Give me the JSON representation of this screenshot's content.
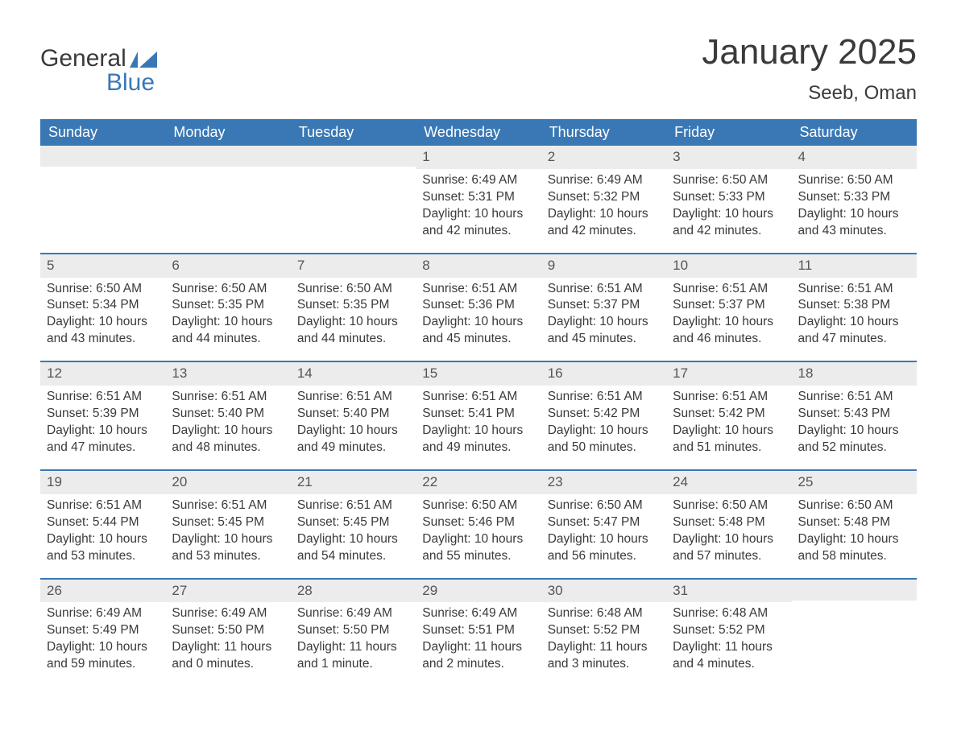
{
  "logo": {
    "word1": "General",
    "word2": "Blue",
    "accent_color": "#3a78b5"
  },
  "title": "January 2025",
  "location": "Seeb, Oman",
  "colors": {
    "header_bg": "#3a78b5",
    "header_text": "#ffffff",
    "daynum_bg": "#ececec",
    "text": "#3a3a3a",
    "row_divider": "#3a78b5",
    "page_bg": "#ffffff"
  },
  "day_headers": [
    "Sunday",
    "Monday",
    "Tuesday",
    "Wednesday",
    "Thursday",
    "Friday",
    "Saturday"
  ],
  "weeks": [
    [
      {
        "empty": true
      },
      {
        "empty": true
      },
      {
        "empty": true
      },
      {
        "day": "1",
        "sunrise": "Sunrise: 6:49 AM",
        "sunset": "Sunset: 5:31 PM",
        "daylight": "Daylight: 10 hours and 42 minutes."
      },
      {
        "day": "2",
        "sunrise": "Sunrise: 6:49 AM",
        "sunset": "Sunset: 5:32 PM",
        "daylight": "Daylight: 10 hours and 42 minutes."
      },
      {
        "day": "3",
        "sunrise": "Sunrise: 6:50 AM",
        "sunset": "Sunset: 5:33 PM",
        "daylight": "Daylight: 10 hours and 42 minutes."
      },
      {
        "day": "4",
        "sunrise": "Sunrise: 6:50 AM",
        "sunset": "Sunset: 5:33 PM",
        "daylight": "Daylight: 10 hours and 43 minutes."
      }
    ],
    [
      {
        "day": "5",
        "sunrise": "Sunrise: 6:50 AM",
        "sunset": "Sunset: 5:34 PM",
        "daylight": "Daylight: 10 hours and 43 minutes."
      },
      {
        "day": "6",
        "sunrise": "Sunrise: 6:50 AM",
        "sunset": "Sunset: 5:35 PM",
        "daylight": "Daylight: 10 hours and 44 minutes."
      },
      {
        "day": "7",
        "sunrise": "Sunrise: 6:50 AM",
        "sunset": "Sunset: 5:35 PM",
        "daylight": "Daylight: 10 hours and 44 minutes."
      },
      {
        "day": "8",
        "sunrise": "Sunrise: 6:51 AM",
        "sunset": "Sunset: 5:36 PM",
        "daylight": "Daylight: 10 hours and 45 minutes."
      },
      {
        "day": "9",
        "sunrise": "Sunrise: 6:51 AM",
        "sunset": "Sunset: 5:37 PM",
        "daylight": "Daylight: 10 hours and 45 minutes."
      },
      {
        "day": "10",
        "sunrise": "Sunrise: 6:51 AM",
        "sunset": "Sunset: 5:37 PM",
        "daylight": "Daylight: 10 hours and 46 minutes."
      },
      {
        "day": "11",
        "sunrise": "Sunrise: 6:51 AM",
        "sunset": "Sunset: 5:38 PM",
        "daylight": "Daylight: 10 hours and 47 minutes."
      }
    ],
    [
      {
        "day": "12",
        "sunrise": "Sunrise: 6:51 AM",
        "sunset": "Sunset: 5:39 PM",
        "daylight": "Daylight: 10 hours and 47 minutes."
      },
      {
        "day": "13",
        "sunrise": "Sunrise: 6:51 AM",
        "sunset": "Sunset: 5:40 PM",
        "daylight": "Daylight: 10 hours and 48 minutes."
      },
      {
        "day": "14",
        "sunrise": "Sunrise: 6:51 AM",
        "sunset": "Sunset: 5:40 PM",
        "daylight": "Daylight: 10 hours and 49 minutes."
      },
      {
        "day": "15",
        "sunrise": "Sunrise: 6:51 AM",
        "sunset": "Sunset: 5:41 PM",
        "daylight": "Daylight: 10 hours and 49 minutes."
      },
      {
        "day": "16",
        "sunrise": "Sunrise: 6:51 AM",
        "sunset": "Sunset: 5:42 PM",
        "daylight": "Daylight: 10 hours and 50 minutes."
      },
      {
        "day": "17",
        "sunrise": "Sunrise: 6:51 AM",
        "sunset": "Sunset: 5:42 PM",
        "daylight": "Daylight: 10 hours and 51 minutes."
      },
      {
        "day": "18",
        "sunrise": "Sunrise: 6:51 AM",
        "sunset": "Sunset: 5:43 PM",
        "daylight": "Daylight: 10 hours and 52 minutes."
      }
    ],
    [
      {
        "day": "19",
        "sunrise": "Sunrise: 6:51 AM",
        "sunset": "Sunset: 5:44 PM",
        "daylight": "Daylight: 10 hours and 53 minutes."
      },
      {
        "day": "20",
        "sunrise": "Sunrise: 6:51 AM",
        "sunset": "Sunset: 5:45 PM",
        "daylight": "Daylight: 10 hours and 53 minutes."
      },
      {
        "day": "21",
        "sunrise": "Sunrise: 6:51 AM",
        "sunset": "Sunset: 5:45 PM",
        "daylight": "Daylight: 10 hours and 54 minutes."
      },
      {
        "day": "22",
        "sunrise": "Sunrise: 6:50 AM",
        "sunset": "Sunset: 5:46 PM",
        "daylight": "Daylight: 10 hours and 55 minutes."
      },
      {
        "day": "23",
        "sunrise": "Sunrise: 6:50 AM",
        "sunset": "Sunset: 5:47 PM",
        "daylight": "Daylight: 10 hours and 56 minutes."
      },
      {
        "day": "24",
        "sunrise": "Sunrise: 6:50 AM",
        "sunset": "Sunset: 5:48 PM",
        "daylight": "Daylight: 10 hours and 57 minutes."
      },
      {
        "day": "25",
        "sunrise": "Sunrise: 6:50 AM",
        "sunset": "Sunset: 5:48 PM",
        "daylight": "Daylight: 10 hours and 58 minutes."
      }
    ],
    [
      {
        "day": "26",
        "sunrise": "Sunrise: 6:49 AM",
        "sunset": "Sunset: 5:49 PM",
        "daylight": "Daylight: 10 hours and 59 minutes."
      },
      {
        "day": "27",
        "sunrise": "Sunrise: 6:49 AM",
        "sunset": "Sunset: 5:50 PM",
        "daylight": "Daylight: 11 hours and 0 minutes."
      },
      {
        "day": "28",
        "sunrise": "Sunrise: 6:49 AM",
        "sunset": "Sunset: 5:50 PM",
        "daylight": "Daylight: 11 hours and 1 minute."
      },
      {
        "day": "29",
        "sunrise": "Sunrise: 6:49 AM",
        "sunset": "Sunset: 5:51 PM",
        "daylight": "Daylight: 11 hours and 2 minutes."
      },
      {
        "day": "30",
        "sunrise": "Sunrise: 6:48 AM",
        "sunset": "Sunset: 5:52 PM",
        "daylight": "Daylight: 11 hours and 3 minutes."
      },
      {
        "day": "31",
        "sunrise": "Sunrise: 6:48 AM",
        "sunset": "Sunset: 5:52 PM",
        "daylight": "Daylight: 11 hours and 4 minutes."
      },
      {
        "empty": true
      }
    ]
  ]
}
